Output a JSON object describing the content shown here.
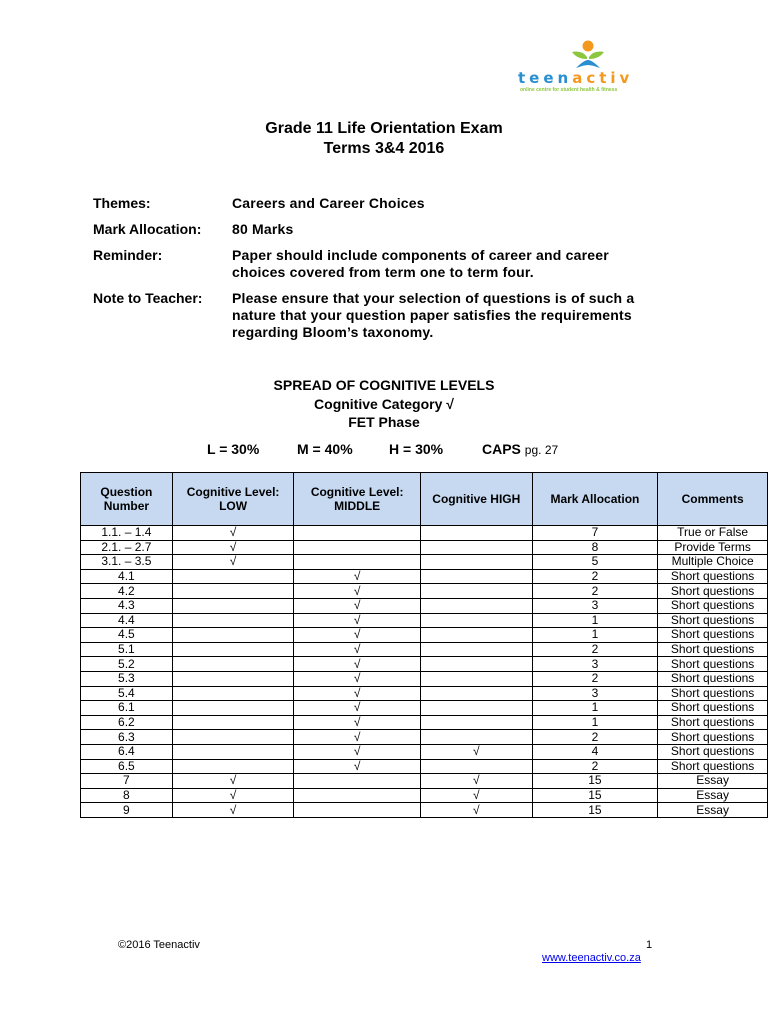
{
  "logo": {
    "word_part1": "teen",
    "word_part2": "activ",
    "tagline": "online centre for student health & fitness"
  },
  "title": {
    "line1": "Grade 11 Life Orientation Exam",
    "line2": "Terms 3&4 2016"
  },
  "meta": [
    {
      "label": "Themes:",
      "value": "Careers and Career Choices"
    },
    {
      "label": "Mark Allocation:",
      "value": "80 Marks"
    },
    {
      "label": "Reminder:",
      "value": "Paper should include components of career and career choices covered from term one to term four."
    },
    {
      "label": "Note to Teacher:",
      "value": "Please ensure that your selection of questions is of such a nature that your question paper satisfies the requirements regarding Bloom’s taxonomy."
    }
  ],
  "spread": {
    "heading": "SPREAD OF COGNITIVE LEVELS",
    "category": "Cognitive Category √",
    "phase": "FET Phase",
    "low": "L = 30%",
    "middle": "M = 40%",
    "high": "H = 30%",
    "caps": "CAPS",
    "caps_page": "pg. 27"
  },
  "table": {
    "headers": [
      "Question Number",
      "Cognitive Level: LOW",
      "Cognitive Level: MIDDLE",
      "Cognitive HIGH",
      "Mark Allocation",
      "Comments"
    ],
    "rows": [
      [
        "1.1. – 1.4",
        "√",
        "",
        "",
        "7",
        "True or False"
      ],
      [
        "2.1. – 2.7",
        "√",
        "",
        "",
        "8",
        "Provide Terms"
      ],
      [
        "3.1. – 3.5",
        "√",
        "",
        "",
        "5",
        "Multiple Choice"
      ],
      [
        "4.1",
        "",
        "√",
        "",
        "2",
        "Short questions"
      ],
      [
        "4.2",
        "",
        "√",
        "",
        "2",
        "Short questions"
      ],
      [
        "4.3",
        "",
        "√",
        "",
        "3",
        "Short questions"
      ],
      [
        "4.4",
        "",
        "√",
        "",
        "1",
        "Short questions"
      ],
      [
        "4.5",
        "",
        "√",
        "",
        "1",
        "Short questions"
      ],
      [
        "5.1",
        "",
        "√",
        "",
        "2",
        "Short questions"
      ],
      [
        "5.2",
        "",
        "√",
        "",
        "3",
        "Short questions"
      ],
      [
        "5.3",
        "",
        "√",
        "",
        "2",
        "Short questions"
      ],
      [
        "5.4",
        "",
        "√",
        "",
        "3",
        "Short questions"
      ],
      [
        "6.1",
        "",
        "√",
        "",
        "1",
        "Short questions"
      ],
      [
        "6.2",
        "",
        "√",
        "",
        "1",
        "Short questions"
      ],
      [
        "6.3",
        "",
        "√",
        "",
        "2",
        "Short questions"
      ],
      [
        "6.4",
        "",
        "√",
        "√",
        "4",
        "Short questions"
      ],
      [
        "6.5",
        "",
        "√",
        "",
        "2",
        "Short questions"
      ],
      [
        "7",
        "√",
        "",
        "√",
        "15",
        "Essay"
      ],
      [
        "8",
        "√",
        "",
        "√",
        "15",
        "Essay"
      ],
      [
        "9",
        "√",
        "",
        "√",
        "15",
        "Essay"
      ]
    ]
  },
  "footer": {
    "copyright": "©2016 Teenactiv",
    "page": "1",
    "link": "www.teenactiv.co.za"
  }
}
